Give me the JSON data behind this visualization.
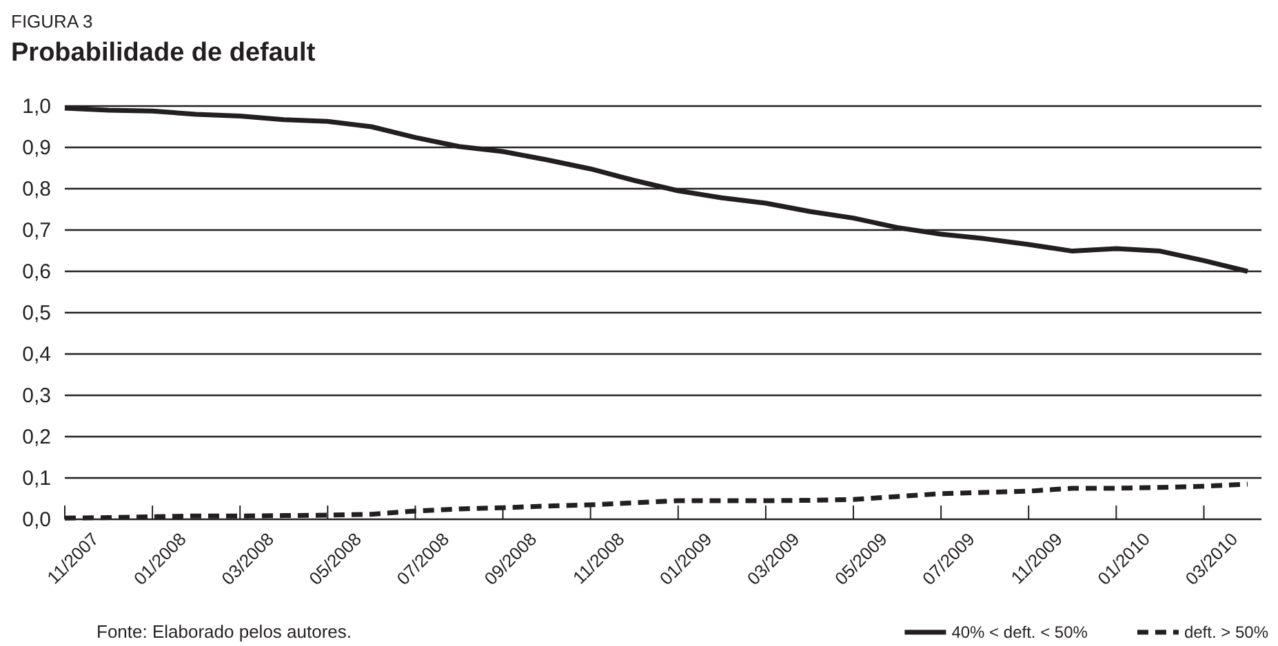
{
  "chart_data": {
    "type": "line",
    "subtitle": "FIGURA 3",
    "title": "Probabilidade  de default",
    "categories": [
      "11/2007",
      null,
      "01/2008",
      null,
      "03/2008",
      null,
      "05/2008",
      null,
      "07/2008",
      null,
      "09/2008",
      null,
      "11/2008",
      null,
      "01/2009",
      null,
      "03/2009",
      null,
      "05/2009",
      null,
      "07/2009",
      null,
      "11/2009",
      null,
      "01/2010",
      null,
      "03/2010",
      null
    ],
    "series": [
      {
        "name": "40% < deft. < 50%",
        "color": "#231f20",
        "line_style": "solid",
        "values": [
          0.995,
          0.99,
          0.988,
          0.98,
          0.976,
          0.967,
          0.963,
          0.95,
          0.924,
          0.902,
          0.89,
          0.87,
          0.848,
          0.82,
          0.795,
          0.778,
          0.765,
          0.745,
          0.729,
          0.706,
          0.69,
          0.679,
          0.665,
          0.649,
          0.655,
          0.649,
          0.626,
          0.6
        ]
      },
      {
        "name": "deft. > 50%",
        "color": "#231f20",
        "line_style": "dashed",
        "values": [
          0.003,
          0.004,
          0.006,
          0.008,
          0.008,
          0.009,
          0.01,
          0.012,
          0.02,
          0.025,
          0.028,
          0.032,
          0.035,
          0.04,
          0.045,
          0.045,
          0.045,
          0.046,
          0.048,
          0.055,
          0.062,
          0.065,
          0.068,
          0.075,
          0.075,
          0.077,
          0.08,
          0.085
        ]
      }
    ],
    "ylim": [
      0,
      1
    ],
    "yticks": [
      {
        "value": 0,
        "label": "0,0"
      },
      {
        "value": 0.1,
        "label": "0,1"
      },
      {
        "value": 0.2,
        "label": "0,2"
      },
      {
        "value": 0.3,
        "label": "0,3"
      },
      {
        "value": 0.4,
        "label": "0,4"
      },
      {
        "value": 0.5,
        "label": "0,5"
      },
      {
        "value": 0.6,
        "label": "0,6"
      },
      {
        "value": 0.7,
        "label": "0,7"
      },
      {
        "value": 0.8,
        "label": "0,8"
      },
      {
        "value": 0.9,
        "label": "0,9"
      },
      {
        "value": 1,
        "label": "1,0"
      }
    ],
    "grid": "y",
    "legend": "bottom right",
    "marker": "none",
    "annotations": [
      "Fonte: Elaborado pelos autores."
    ]
  }
}
